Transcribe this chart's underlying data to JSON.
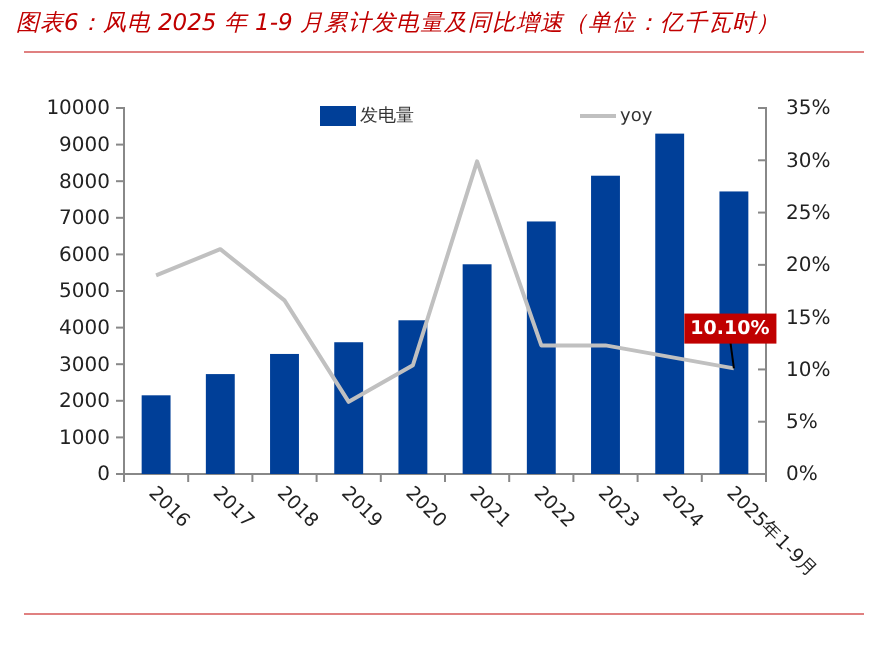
{
  "chart_data": {
    "type": "bar",
    "title": "图表6：风电 2025 年 1-9 月累计发电量及同比增速（单位：亿千瓦时）",
    "categories": [
      "2016",
      "2017",
      "2018",
      "2019",
      "2020",
      "2021",
      "2022",
      "2023",
      "2024",
      "2025年1-9月"
    ],
    "series": [
      {
        "name": "发电量",
        "color": "#003f98",
        "values": [
          2150,
          2730,
          3280,
          3600,
          4200,
          5730,
          6900,
          8150,
          9300,
          7720
        ]
      },
      {
        "name": "yoy",
        "type": "line",
        "axis": "y2",
        "color": "#c0c0c0",
        "values": [
          19.0,
          21.5,
          16.6,
          6.9,
          10.4,
          29.9,
          12.3,
          12.3,
          11.2,
          10.1
        ],
        "value_labels": [
          null,
          null,
          null,
          null,
          null,
          null,
          null,
          null,
          null,
          "10.10%"
        ]
      }
    ],
    "ylim": [
      0,
      10000
    ],
    "yticks": [
      0,
      1000,
      2000,
      3000,
      4000,
      5000,
      6000,
      7000,
      8000,
      9000,
      10000
    ],
    "y2lim": [
      0,
      35
    ],
    "y2ticks": [
      {
        "value": 0,
        "label": "0%"
      },
      {
        "value": 5,
        "label": "5%"
      },
      {
        "value": 10,
        "label": "10%"
      },
      {
        "value": 15,
        "label": "15%"
      },
      {
        "value": 20,
        "label": "20%"
      },
      {
        "value": 25,
        "label": "25%"
      },
      {
        "value": 30,
        "label": "30%"
      },
      {
        "value": 35,
        "label": "35%"
      }
    ],
    "legend": "top",
    "grid": false,
    "marker": "none",
    "line_style": "solid"
  }
}
